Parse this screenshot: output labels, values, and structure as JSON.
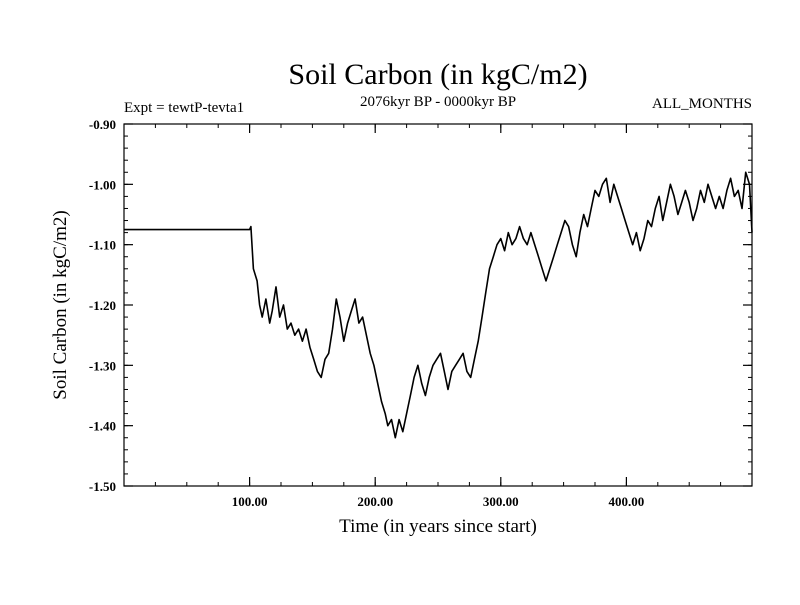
{
  "chart_data": {
    "type": "line",
    "title": "Soil Carbon (in kgC/m2)",
    "subtitle_left": "Expt = tewtP-tevta1",
    "subtitle_center": "2076kyr BP - 0000kyr BP",
    "subtitle_right": "ALL_MONTHS",
    "xlabel": "Time (in years since start)",
    "ylabel": "Soil Carbon (in kgC/m2)",
    "xlim": [
      0,
      500
    ],
    "ylim": [
      -1.5,
      -0.9
    ],
    "x_ticks": [
      {
        "value": 100,
        "label": "100.00"
      },
      {
        "value": 200,
        "label": "200.00"
      },
      {
        "value": 300,
        "label": "300.00"
      },
      {
        "value": 400,
        "label": "400.00"
      }
    ],
    "y_ticks": [
      {
        "value": -0.9,
        "label": "-0.90"
      },
      {
        "value": -1.0,
        "label": "-1.00"
      },
      {
        "value": -1.1,
        "label": "-1.10"
      },
      {
        "value": -1.2,
        "label": "-1.20"
      },
      {
        "value": -1.3,
        "label": "-1.30"
      },
      {
        "value": -1.4,
        "label": "-1.40"
      },
      {
        "value": -1.5,
        "label": "-1.50"
      }
    ],
    "grid": false,
    "colors": {
      "line": "#000000",
      "axes": "#000000",
      "background": "#ffffff"
    },
    "series": [
      {
        "name": "Soil Carbon",
        "x": [
          0,
          100,
          101,
          103,
          106,
          108,
          110,
          113,
          116,
          118,
          121,
          124,
          127,
          130,
          133,
          136,
          139,
          142,
          145,
          148,
          151,
          154,
          157,
          160,
          163,
          166,
          169,
          172,
          175,
          178,
          181,
          184,
          187,
          190,
          193,
          196,
          199,
          202,
          205,
          208,
          210,
          213,
          216,
          219,
          222,
          225,
          228,
          231,
          234,
          237,
          240,
          243,
          246,
          249,
          252,
          255,
          258,
          261,
          264,
          267,
          270,
          273,
          276,
          279,
          282,
          285,
          288,
          291,
          294,
          297,
          300,
          303,
          306,
          309,
          312,
          315,
          318,
          321,
          324,
          327,
          330,
          333,
          336,
          339,
          342,
          345,
          348,
          351,
          354,
          357,
          360,
          363,
          366,
          369,
          372,
          375,
          378,
          381,
          384,
          387,
          390,
          393,
          396,
          399,
          402,
          405,
          408,
          411,
          414,
          417,
          420,
          423,
          426,
          429,
          432,
          435,
          438,
          441,
          444,
          447,
          450,
          453,
          456,
          459,
          462,
          465,
          468,
          471,
          474,
          477,
          480,
          483,
          486,
          489,
          492,
          495,
          498,
          500
        ],
        "values": [
          -1.075,
          -1.075,
          -1.07,
          -1.14,
          -1.16,
          -1.2,
          -1.22,
          -1.19,
          -1.23,
          -1.21,
          -1.17,
          -1.22,
          -1.2,
          -1.24,
          -1.23,
          -1.25,
          -1.24,
          -1.26,
          -1.24,
          -1.27,
          -1.29,
          -1.31,
          -1.32,
          -1.29,
          -1.28,
          -1.24,
          -1.19,
          -1.22,
          -1.26,
          -1.23,
          -1.21,
          -1.19,
          -1.23,
          -1.22,
          -1.25,
          -1.28,
          -1.3,
          -1.33,
          -1.36,
          -1.38,
          -1.4,
          -1.39,
          -1.42,
          -1.39,
          -1.41,
          -1.38,
          -1.35,
          -1.32,
          -1.3,
          -1.33,
          -1.35,
          -1.32,
          -1.3,
          -1.29,
          -1.28,
          -1.31,
          -1.34,
          -1.31,
          -1.3,
          -1.29,
          -1.28,
          -1.31,
          -1.32,
          -1.29,
          -1.26,
          -1.22,
          -1.18,
          -1.14,
          -1.12,
          -1.1,
          -1.09,
          -1.11,
          -1.08,
          -1.1,
          -1.09,
          -1.07,
          -1.09,
          -1.1,
          -1.08,
          -1.1,
          -1.12,
          -1.14,
          -1.16,
          -1.14,
          -1.12,
          -1.1,
          -1.08,
          -1.06,
          -1.07,
          -1.1,
          -1.12,
          -1.08,
          -1.05,
          -1.07,
          -1.04,
          -1.01,
          -1.02,
          -1.0,
          -0.99,
          -1.03,
          -1.0,
          -1.02,
          -1.04,
          -1.06,
          -1.08,
          -1.1,
          -1.08,
          -1.11,
          -1.09,
          -1.06,
          -1.07,
          -1.04,
          -1.02,
          -1.06,
          -1.03,
          -1.0,
          -1.02,
          -1.05,
          -1.03,
          -1.01,
          -1.03,
          -1.06,
          -1.04,
          -1.01,
          -1.03,
          -1.0,
          -1.02,
          -1.04,
          -1.02,
          -1.04,
          -1.01,
          -0.99,
          -1.02,
          -1.01,
          -1.04,
          -0.98,
          -1.0,
          -1.08
        ]
      }
    ]
  }
}
